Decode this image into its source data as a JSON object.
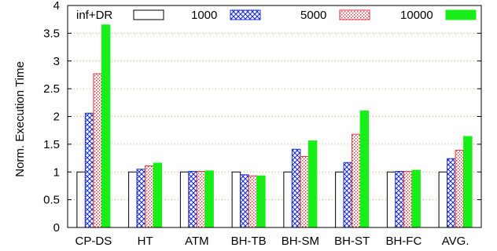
{
  "chart_data": {
    "type": "bar",
    "title": "",
    "xlabel": "",
    "ylabel": "Norm. Execution Time",
    "ylim": [
      0,
      4
    ],
    "yticks": [
      "0",
      "0.5",
      "1",
      "1.5",
      "2",
      "2.5",
      "3",
      "3.5",
      "4"
    ],
    "grid": "horizontal-dotted",
    "legend_placement": "top (inside plot, single row)",
    "categories": [
      "CP-DS",
      "HT",
      "ATM",
      "BH-TB",
      "BH-SM",
      "BH-ST",
      "BH-FC",
      "AVG."
    ],
    "series": [
      {
        "name": "inf+DR",
        "pattern": "white",
        "values": [
          1.0,
          1.0,
          1.0,
          1.0,
          1.0,
          1.0,
          1.0,
          1.0
        ]
      },
      {
        "name": "1000",
        "pattern": "blue-crosshatch",
        "values": [
          2.06,
          1.05,
          1.01,
          0.95,
          1.41,
          1.17,
          1.01,
          1.24
        ]
      },
      {
        "name": "5000",
        "pattern": "red-dotted",
        "values": [
          2.77,
          1.11,
          1.01,
          0.93,
          1.28,
          1.68,
          1.01,
          1.39
        ]
      },
      {
        "name": "10000",
        "pattern": "solid-green",
        "values": [
          3.65,
          1.16,
          1.02,
          0.93,
          1.56,
          2.1,
          1.03,
          1.64
        ]
      }
    ],
    "colors": {
      "blue": "#1a2ccc",
      "red": "#e0303a",
      "green": "#18ee18",
      "grid": "#b5b56a"
    }
  }
}
